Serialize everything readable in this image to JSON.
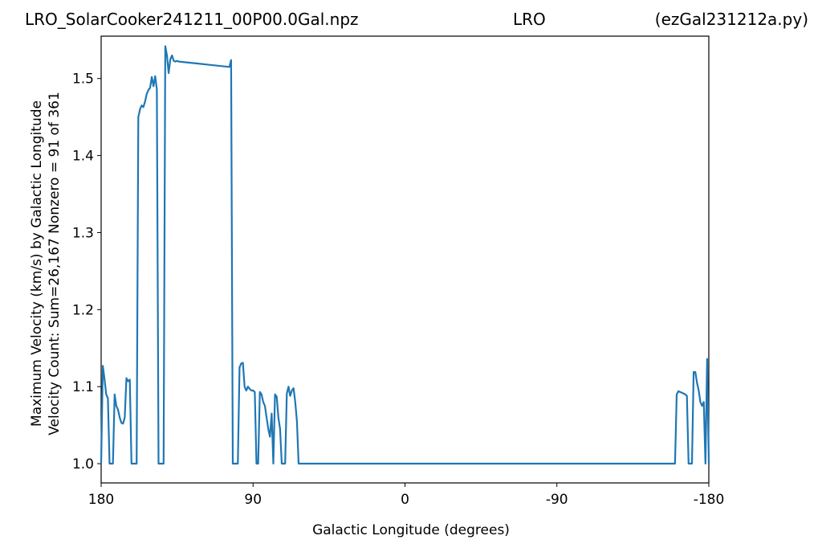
{
  "title": {
    "left": "LRO_SolarCooker241211_00P00.0Gal.npz",
    "center": "LRO",
    "right": "(ezGal231212a.py)"
  },
  "chart_data": {
    "type": "line",
    "title": "LRO_SolarCooker241211_00P00.0Gal.npz LRO (ezGal231212a.py)",
    "xlabel": "Galactic Longitude (degrees)",
    "ylabel_line1": "Maximum Velocity (km/s) by Galactic Longitude",
    "ylabel_line2": "Velocity Count: Sum=26,167 Nonzero = 91 of 361",
    "xlim": [
      180,
      -180
    ],
    "ylim": [
      0.975,
      1.555
    ],
    "x_ticks": [
      180,
      90,
      0,
      -90,
      -180
    ],
    "x_tick_labels": [
      "180",
      "90",
      "0",
      "-90",
      "-180"
    ],
    "y_ticks": [
      1.0,
      1.1,
      1.2,
      1.3,
      1.4,
      1.5
    ],
    "y_tick_labels": [
      "1.0",
      "1.1",
      "1.2",
      "1.3",
      "1.4",
      "1.5"
    ],
    "grid": false,
    "line_color": "#1f77b4",
    "series": [
      {
        "x": [
          180,
          179,
          178,
          177,
          176,
          175,
          174,
          173,
          172,
          171,
          170,
          169,
          168,
          167,
          166,
          165,
          164,
          163,
          162,
          161,
          160,
          159,
          158,
          157,
          156,
          155,
          154,
          153,
          152,
          151,
          150,
          149,
          148,
          147,
          146,
          145,
          144,
          143,
          142,
          141,
          140,
          139,
          138,
          137,
          136,
          135,
          134,
          104,
          103,
          102,
          101,
          100,
          99,
          98,
          97,
          96,
          95,
          94,
          93,
          92,
          91,
          90,
          89,
          88,
          87,
          86,
          85,
          84,
          83,
          82,
          81,
          80,
          79,
          78,
          77,
          76,
          75,
          74,
          73,
          72,
          71,
          70,
          69,
          68,
          67,
          66,
          65,
          64,
          63,
          62,
          61,
          60,
          59,
          58,
          57,
          56,
          55,
          54,
          53,
          52,
          51,
          50,
          49,
          48,
          47,
          46,
          45,
          44,
          43,
          42,
          41,
          -160,
          -161,
          -162,
          -163,
          -164,
          -165,
          -166,
          -167,
          -168,
          -169,
          -170,
          -171,
          -172,
          -173,
          -174,
          -175,
          -176,
          -177,
          -178,
          -179,
          -180
        ],
        "y": [
          1.0,
          1.127,
          1.11,
          1.09,
          1.085,
          1.0,
          1.0,
          1.0,
          1.09,
          1.075,
          1.07,
          1.06,
          1.053,
          1.052,
          1.06,
          1.111,
          1.107,
          1.109,
          1.0,
          1.0,
          1.0,
          1.0,
          1.45,
          1.46,
          1.465,
          1.463,
          1.47,
          1.48,
          1.485,
          1.488,
          1.502,
          1.49,
          1.503,
          1.486,
          1.0,
          1.0,
          1.0,
          1.0,
          1.542,
          1.53,
          1.507,
          1.525,
          1.53,
          1.523,
          1.522,
          1.523,
          1.522,
          1.515,
          1.524,
          1.0,
          1.0,
          1.0,
          1.0,
          1.125,
          1.13,
          1.131,
          1.1,
          1.095,
          1.1,
          1.097,
          1.095,
          1.095,
          1.093,
          1.0,
          1.0,
          1.093,
          1.09,
          1.08,
          1.075,
          1.06,
          1.045,
          1.035,
          1.065,
          1.0,
          1.09,
          1.087,
          1.06,
          1.045,
          1.0,
          1.0,
          1.0,
          1.091,
          1.1,
          1.088,
          1.095,
          1.098,
          1.08,
          1.055,
          1.0,
          1.0,
          1.0,
          1.0,
          1.0,
          1.0,
          1.0,
          1.0,
          1.0,
          1.0,
          1.0,
          1.0,
          1.0,
          1.0,
          1.0,
          1.0,
          1.0,
          1.0,
          1.0,
          1.0,
          1.0,
          1.0,
          1.0,
          1.0,
          1.09,
          1.094,
          1.093,
          1.092,
          1.091,
          1.09,
          1.088,
          1.0,
          1.0,
          1.0,
          1.119,
          1.119,
          1.105,
          1.095,
          1.08,
          1.075,
          1.08,
          1.0,
          1.136,
          1.0
        ]
      }
    ]
  }
}
